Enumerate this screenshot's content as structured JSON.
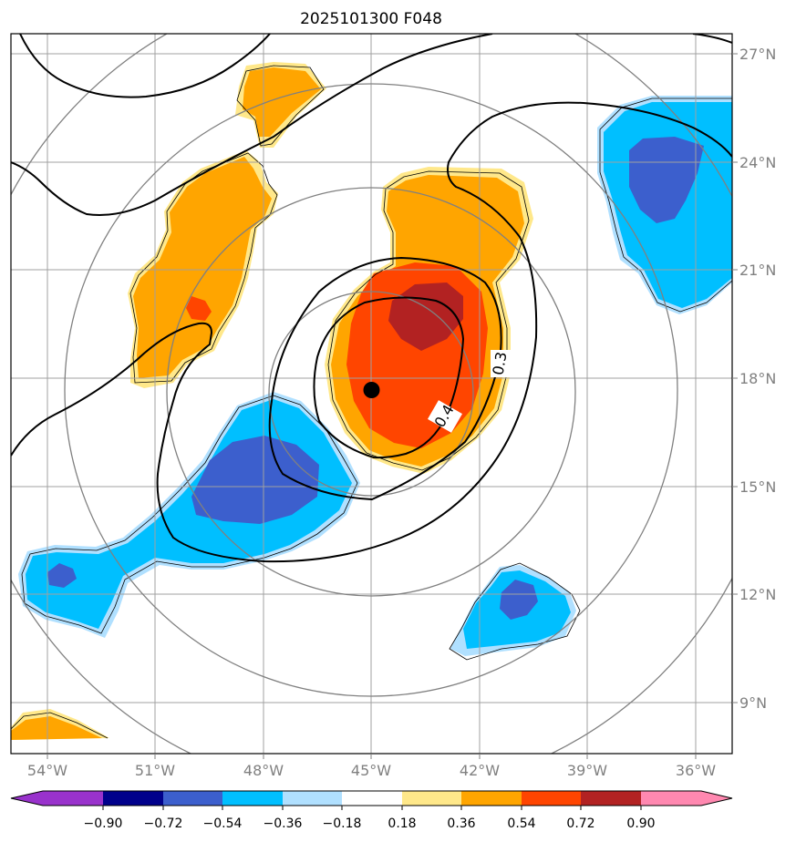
{
  "title": "2025101300 F048",
  "map": {
    "lon_range": [
      -55,
      -35
    ],
    "lat_range": [
      7.5,
      27.5
    ],
    "lon_ticks": [
      "54°W",
      "51°W",
      "48°W",
      "45°W",
      "42°W",
      "39°W",
      "36°W"
    ],
    "lat_ticks": [
      "27°N",
      "24°N",
      "21°N",
      "18°N",
      "15°N",
      "12°N",
      "9°N"
    ],
    "storm_center": {
      "lon": -45,
      "lat": 17.6
    },
    "range_rings_deg": [
      3,
      6,
      9
    ],
    "contour_labels": [
      "0.3",
      "0.4"
    ],
    "grid": true
  },
  "colorbar": {
    "ticks": [
      "−0.90",
      "−0.72",
      "−0.54",
      "−0.36",
      "−0.18",
      "0.18",
      "0.36",
      "0.54",
      "0.72",
      "0.90"
    ],
    "colors": [
      "#9932cc",
      "#00008b",
      "#3c5fcd",
      "#00bfff",
      "#b0e0ff",
      "#ffffff",
      "#ffe88a",
      "#ffa500",
      "#ff4500",
      "#b22222",
      "#ff88b0"
    ],
    "extend": "both"
  },
  "shading_colors": {
    "light_yellow": "#ffe88a",
    "orange": "#ffa500",
    "red_orange": "#ff4500",
    "dark_red": "#b22222",
    "light_blue": "#b0e0ff",
    "deep_sky_blue": "#00bfff",
    "royal_blue": "#3c5fcd"
  }
}
